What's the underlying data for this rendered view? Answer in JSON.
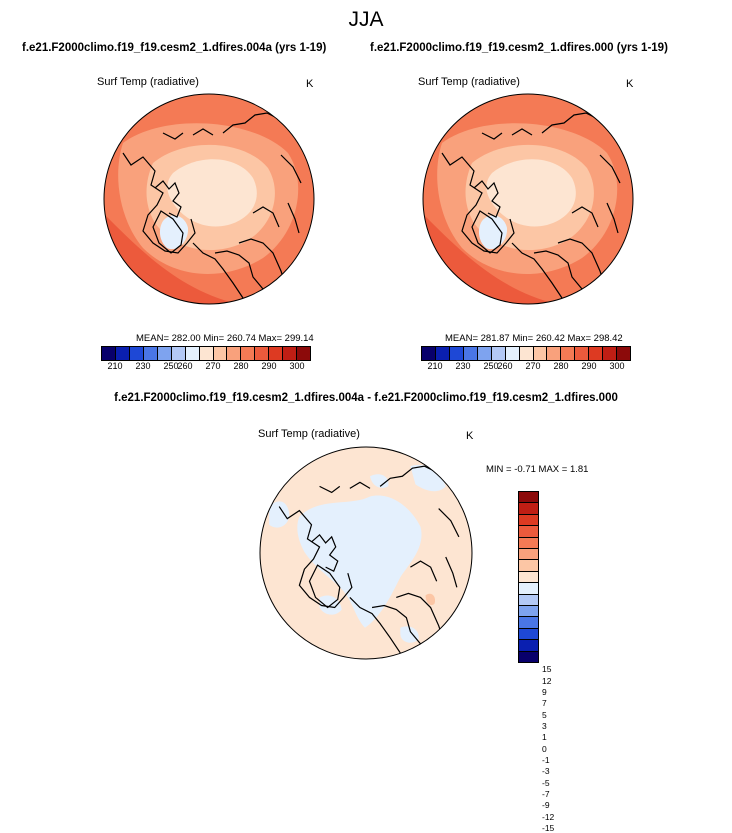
{
  "season": "JJA",
  "panels": [
    {
      "case": "f.e21.F2000climo.f19_f19.cesm2_1.dfires.004a (yrs 1-19)",
      "variable": "Surf Temp (radiative)",
      "units": "K",
      "stats": "MEAN= 282.00  Min= 260.74  Max= 299.14"
    },
    {
      "case": "f.e21.F2000climo.f19_f19.cesm2_1.dfires.000 (yrs 1-19)",
      "variable": "Surf Temp (radiative)",
      "units": "K",
      "stats": "MEAN= 281.87  Min= 260.42  Max= 298.42"
    }
  ],
  "difference": {
    "title": "f.e21.F2000climo.f19_f19.cesm2_1.dfires.004a - f.e21.F2000climo.f19_f19.cesm2_1.dfires.000",
    "variable": "Surf Temp (radiative)",
    "units": "K",
    "stats": "MIN = -0.71  MAX =  1.81"
  },
  "colorbar_abs": {
    "colors": [
      "#08006b",
      "#0a1fb0",
      "#1e48d6",
      "#4a76e6",
      "#7ea3ef",
      "#b3c9f6",
      "#e4f0fd",
      "#fde5d2",
      "#fcc6a5",
      "#f9a17c",
      "#f47a55",
      "#ec5a3c",
      "#dd3a22",
      "#c01e14",
      "#8c0a0a"
    ],
    "tick_labels": [
      "210",
      "230",
      "250",
      "260",
      "270",
      "280",
      "290",
      "300"
    ],
    "tick_positions": [
      1,
      3,
      5,
      6,
      8,
      10,
      12,
      14
    ]
  },
  "colorbar_diff": {
    "colors": [
      "#8c0a0a",
      "#c01e14",
      "#dd3a22",
      "#ec5a3c",
      "#f47a55",
      "#f9a17c",
      "#fcc6a5",
      "#fde5d2",
      "#e4f0fd",
      "#b3c9f6",
      "#7ea3ef",
      "#4a76e6",
      "#1e48d6",
      "#0a1fb0",
      "#08006b"
    ],
    "tick_labels": [
      "15",
      "12",
      "9",
      "7",
      "5",
      "3",
      "1",
      "0",
      "-1",
      "-3",
      "-5",
      "-7",
      "-9",
      "-12",
      "-15"
    ]
  }
}
